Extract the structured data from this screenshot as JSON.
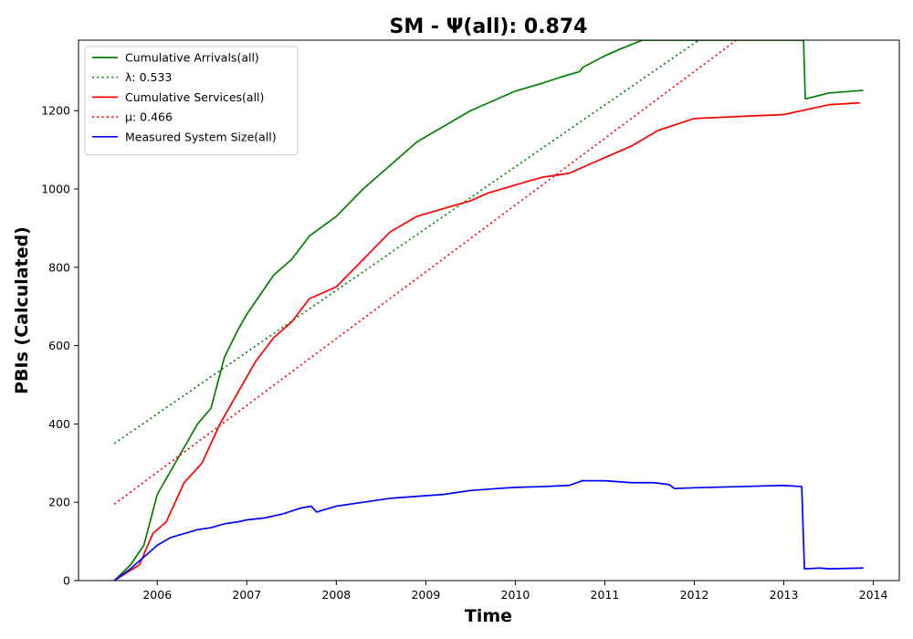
{
  "chart_data": {
    "type": "line",
    "title": "SM -  Ψ(all): 0.874",
    "xlabel": "Time",
    "ylabel": "PBIs (Calculated)",
    "xlim": [
      2005.12,
      2014.29
    ],
    "ylim": [
      0,
      1380
    ],
    "xticks": [
      2006,
      2007,
      2008,
      2009,
      2010,
      2011,
      2012,
      2013,
      2014
    ],
    "yticks": [
      0,
      200,
      400,
      600,
      800,
      1000,
      1200
    ],
    "grid": false,
    "legend_position": "top-left",
    "series": [
      {
        "name": "Cumulative Arrivals(all)",
        "color": "#008000",
        "dash": "solid",
        "x": [
          2005.52,
          2005.7,
          2005.85,
          2006.0,
          2006.15,
          2006.3,
          2006.45,
          2006.6,
          2006.75,
          2006.9,
          2007.0,
          2007.15,
          2007.3,
          2007.5,
          2007.7,
          2008.0,
          2008.3,
          2008.6,
          2008.9,
          2009.2,
          2009.5,
          2009.8,
          2010.0,
          2010.3,
          2010.5,
          2010.72,
          2010.75,
          2011.0,
          2011.2,
          2011.42,
          2011.5,
          2012.0,
          2012.5,
          2013.0,
          2013.22,
          2013.24,
          2013.5,
          2013.89
        ],
        "y": [
          0,
          40,
          90,
          220,
          280,
          340,
          400,
          440,
          570,
          640,
          680,
          730,
          780,
          820,
          880,
          930,
          1000,
          1060,
          1120,
          1160,
          1200,
          1230,
          1250,
          1270,
          1285,
          1300,
          1310,
          1340,
          1360,
          1380,
          1380,
          1380,
          1380,
          1380,
          1380,
          1230,
          1245,
          1252
        ]
      },
      {
        "name": "λ: 0.533",
        "color": "#008000",
        "dash": "dotted",
        "x": [
          2005.52,
          2012.05
        ],
        "y": [
          350,
          1380
        ]
      },
      {
        "name": "Cumulative Services(all)",
        "color": "#ff0000",
        "dash": "solid",
        "x": [
          2005.52,
          2005.8,
          2005.95,
          2006.1,
          2006.3,
          2006.5,
          2006.7,
          2006.9,
          2007.1,
          2007.3,
          2007.5,
          2007.7,
          2008.0,
          2008.3,
          2008.6,
          2008.9,
          2009.2,
          2009.5,
          2009.7,
          2010.0,
          2010.3,
          2010.6,
          2010.8,
          2011.0,
          2011.3,
          2011.6,
          2012.0,
          2012.5,
          2013.0,
          2013.2,
          2013.5,
          2013.85
        ],
        "y": [
          0,
          40,
          120,
          150,
          250,
          300,
          400,
          480,
          560,
          620,
          660,
          720,
          750,
          820,
          890,
          930,
          950,
          970,
          990,
          1010,
          1030,
          1040,
          1060,
          1080,
          1110,
          1150,
          1180,
          1185,
          1190,
          1200,
          1215,
          1220
        ]
      },
      {
        "name": "μ: 0.466",
        "color": "#ff0000",
        "dash": "dotted",
        "x": [
          2005.52,
          2012.47
        ],
        "y": [
          195,
          1380
        ]
      },
      {
        "name": "Measured System Size(all)",
        "color": "#0000ff",
        "dash": "solid",
        "x": [
          2005.52,
          2005.7,
          2005.85,
          2006.0,
          2006.15,
          2006.3,
          2006.45,
          2006.6,
          2006.75,
          2006.9,
          2007.0,
          2007.2,
          2007.4,
          2007.6,
          2007.72,
          2007.78,
          2008.0,
          2008.3,
          2008.6,
          2008.9,
          2009.2,
          2009.5,
          2009.8,
          2010.0,
          2010.3,
          2010.6,
          2010.75,
          2011.0,
          2011.3,
          2011.55,
          2011.72,
          2011.78,
          2012.0,
          2012.5,
          2013.0,
          2013.2,
          2013.23,
          2013.4,
          2013.5,
          2013.89
        ],
        "y": [
          0,
          30,
          60,
          90,
          110,
          120,
          130,
          135,
          145,
          150,
          155,
          160,
          170,
          185,
          190,
          175,
          190,
          200,
          210,
          215,
          220,
          230,
          235,
          238,
          240,
          243,
          255,
          255,
          250,
          250,
          245,
          235,
          237,
          240,
          243,
          240,
          30,
          32,
          30,
          32
        ]
      }
    ]
  }
}
